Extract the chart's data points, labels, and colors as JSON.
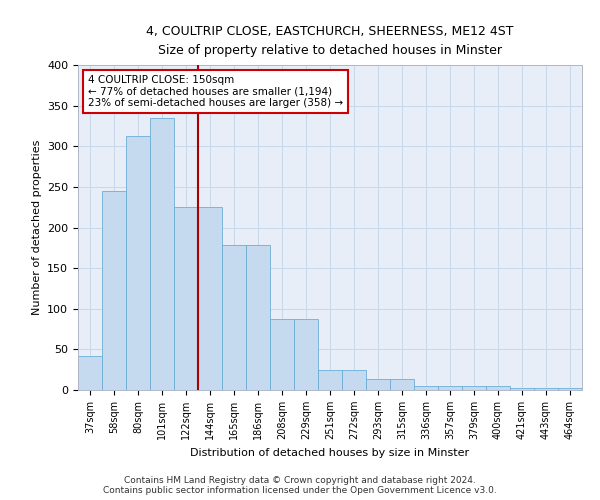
{
  "title1": "4, COULTRIP CLOSE, EASTCHURCH, SHEERNESS, ME12 4ST",
  "title2": "Size of property relative to detached houses in Minster",
  "xlabel": "Distribution of detached houses by size in Minster",
  "ylabel": "Number of detached properties",
  "categories": [
    "37sqm",
    "58sqm",
    "80sqm",
    "101sqm",
    "122sqm",
    "144sqm",
    "165sqm",
    "186sqm",
    "208sqm",
    "229sqm",
    "251sqm",
    "272sqm",
    "293sqm",
    "315sqm",
    "336sqm",
    "357sqm",
    "379sqm",
    "400sqm",
    "421sqm",
    "443sqm",
    "464sqm"
  ],
  "values": [
    42,
    245,
    313,
    335,
    225,
    225,
    178,
    178,
    88,
    88,
    25,
    25,
    14,
    14,
    5,
    5,
    5,
    5,
    3,
    3,
    2
  ],
  "bar_color": "#c5d9ef",
  "bar_edge_color": "#6baed6",
  "vline_x_idx": 5,
  "vline_color": "#aa0000",
  "annotation_text": "4 COULTRIP CLOSE: 150sqm\n← 77% of detached houses are smaller (1,194)\n23% of semi-detached houses are larger (358) →",
  "annotation_box_color": "#ffffff",
  "annotation_box_edge": "#cc0000",
  "grid_color": "#c8d8e8",
  "bg_color": "#e8eef8",
  "footnote": "Contains HM Land Registry data © Crown copyright and database right 2024.\nContains public sector information licensed under the Open Government Licence v3.0.",
  "ylim": [
    0,
    400
  ],
  "yticks": [
    0,
    50,
    100,
    150,
    200,
    250,
    300,
    350,
    400
  ]
}
